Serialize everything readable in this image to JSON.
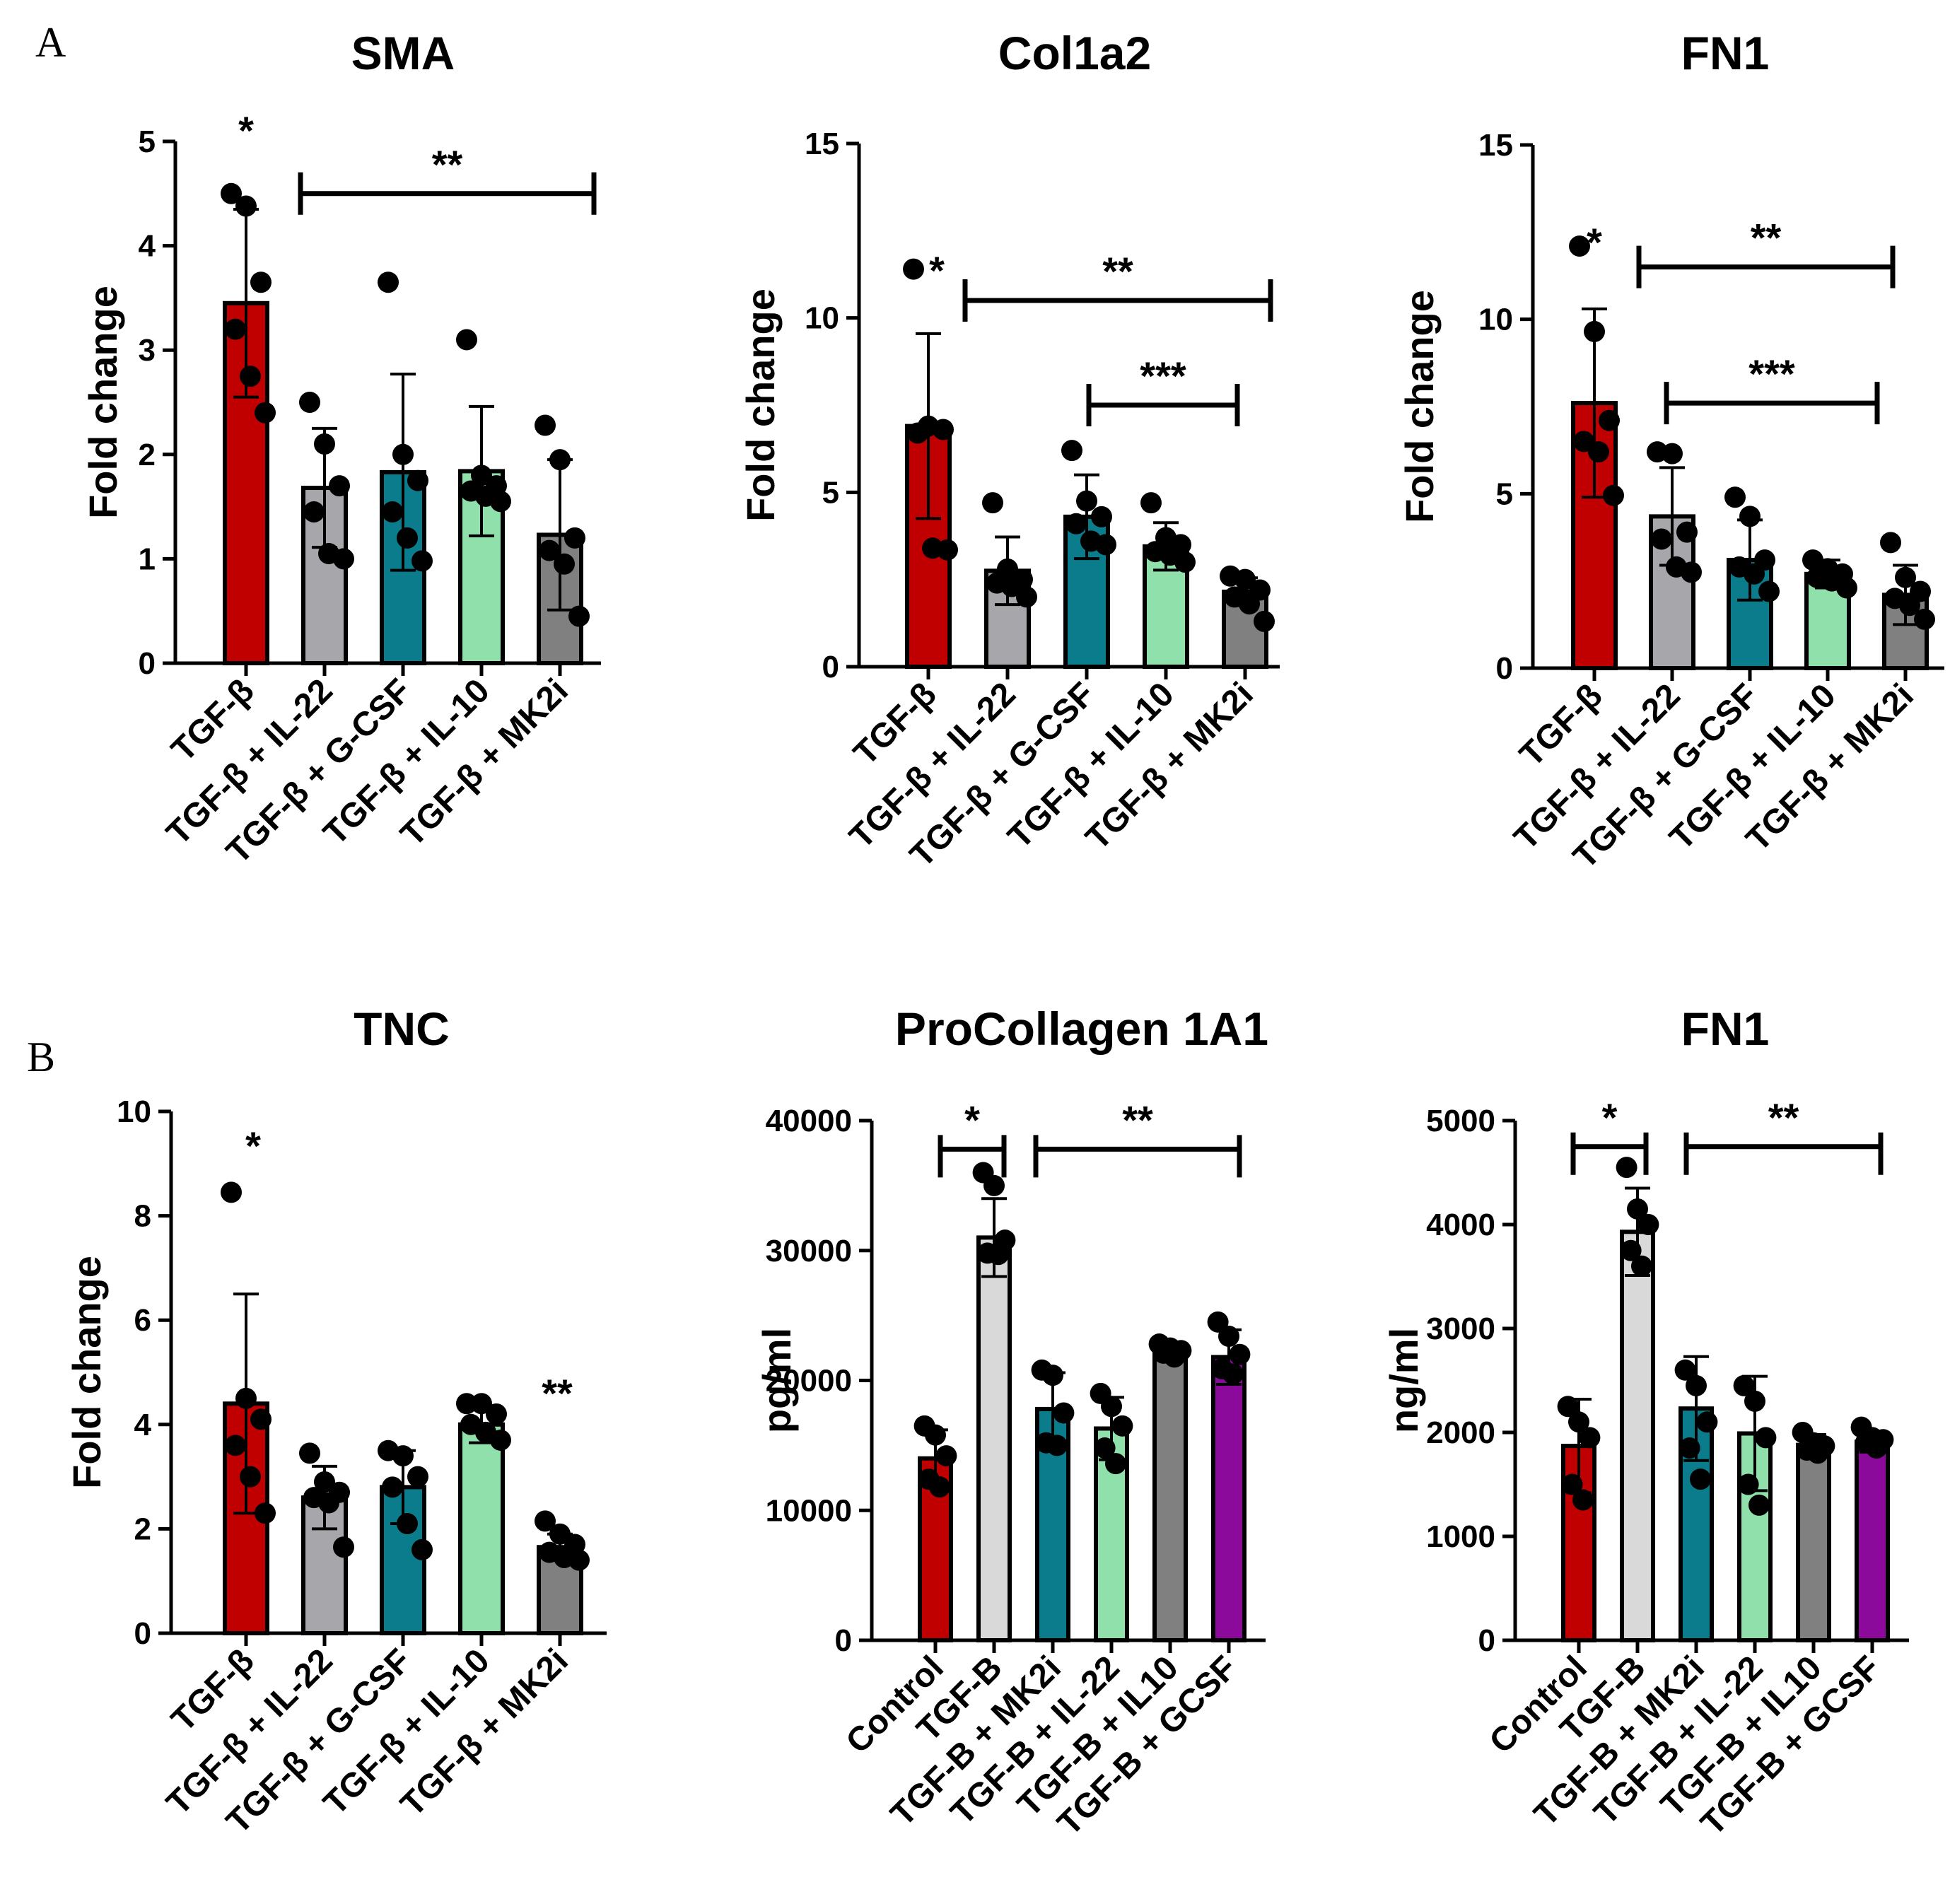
{
  "panel_labels": [
    "A",
    "B"
  ],
  "chart_data": [
    {
      "type": "bar",
      "panel": "A",
      "title": "SMA",
      "ylabel": "Fold change",
      "ylim": [
        0,
        5
      ],
      "yticks": [
        0,
        1,
        2,
        3,
        4,
        5
      ],
      "ytick_labels": [
        "0",
        "1",
        "2",
        "3",
        "4",
        "5"
      ],
      "categories": [
        "TGF-β",
        "TGF-β + IL-22",
        "TGF-β + G-CSF",
        "TGF-β + IL-10",
        "TGF-β + MK2i"
      ],
      "colors": [
        "#c00000",
        "#a6a6ab",
        "#0a7c8c",
        "#90e0ac",
        "#808080"
      ],
      "values": [
        3.45,
        1.68,
        1.83,
        1.84,
        1.23
      ],
      "errors": [
        0.9,
        0.57,
        0.94,
        0.62,
        0.72
      ],
      "points": [
        [
          4.5,
          4.38,
          3.65,
          3.2,
          2.75,
          2.4
        ],
        [
          2.5,
          2.1,
          1.7,
          1.45,
          1.05,
          1.0
        ],
        [
          3.65,
          2.0,
          1.75,
          1.45,
          1.2,
          0.98
        ],
        [
          3.1,
          1.8,
          1.7,
          1.65,
          1.6,
          1.55
        ],
        [
          2.28,
          1.95,
          1.2,
          1.08,
          0.95,
          0.45
        ]
      ],
      "star_labels": [
        "*"
      ],
      "bracket_labels": [
        "**"
      ]
    },
    {
      "type": "bar",
      "panel": "A",
      "title": "Col1a2",
      "ylabel": "Fold change",
      "ylim": [
        0,
        15
      ],
      "yticks": [
        0,
        5,
        10,
        15
      ],
      "ytick_labels": [
        "0",
        "5",
        "10",
        "15"
      ],
      "categories": [
        "TGF-β",
        "TGF-β + IL-22",
        "TGF-β + G-CSF",
        "TGF-β + IL-10",
        "TGF-β + MK2i"
      ],
      "colors": [
        "#c00000",
        "#a6a6ab",
        "#0a7c8c",
        "#90e0ac",
        "#808080"
      ],
      "values": [
        6.9,
        2.75,
        4.3,
        3.45,
        2.15
      ],
      "errors": [
        2.65,
        0.97,
        1.2,
        0.68,
        0.4
      ],
      "points": [
        [
          11.4,
          6.9,
          6.8,
          6.7,
          3.4,
          3.35
        ],
        [
          4.7,
          2.8,
          2.5,
          2.4,
          2.3,
          2.0
        ],
        [
          6.2,
          4.75,
          4.3,
          4.1,
          3.6,
          3.5
        ],
        [
          4.7,
          3.7,
          3.5,
          3.3,
          3.2,
          3.0
        ],
        [
          2.6,
          2.5,
          2.2,
          2.0,
          1.8,
          1.3
        ]
      ],
      "star_labels": [
        "*"
      ],
      "bracket_labels": [
        "**",
        "***"
      ]
    },
    {
      "type": "bar",
      "panel": "A",
      "title": "FN1",
      "ylabel": "Fold change",
      "ylim": [
        0,
        15
      ],
      "yticks": [
        0,
        5,
        10,
        15
      ],
      "ytick_labels": [
        "0",
        "5",
        "10",
        "15"
      ],
      "categories": [
        "TGF-β",
        "TGF-β + IL-22",
        "TGF-β + G-CSF",
        "TGF-β + IL-10",
        "TGF-β + MK2i"
      ],
      "colors": [
        "#c00000",
        "#a6a6ab",
        "#0a7c8c",
        "#90e0ac",
        "#808080"
      ],
      "values": [
        7.6,
        4.35,
        3.1,
        2.7,
        2.1
      ],
      "errors": [
        2.7,
        1.4,
        1.15,
        0.4,
        0.85
      ],
      "points": [
        [
          12.1,
          9.65,
          7.1,
          6.5,
          6.2,
          4.95
        ],
        [
          6.2,
          6.15,
          3.9,
          3.7,
          2.9,
          2.75
        ],
        [
          4.9,
          4.35,
          3.1,
          2.9,
          2.7,
          2.2
        ],
        [
          3.1,
          2.85,
          2.7,
          2.6,
          2.5,
          2.3
        ],
        [
          3.6,
          2.6,
          2.2,
          2.0,
          1.8,
          1.4
        ]
      ],
      "star_labels": [
        "*"
      ],
      "bracket_labels": [
        "**",
        "***"
      ]
    },
    {
      "type": "bar",
      "panel": "B",
      "title": "TNC",
      "ylabel": "Fold change",
      "ylim": [
        0,
        10
      ],
      "yticks": [
        0,
        2,
        4,
        6,
        8,
        10
      ],
      "ytick_labels": [
        "0",
        "2",
        "4",
        "6",
        "8",
        "10"
      ],
      "categories": [
        "TGF-β",
        "TGF-β + IL-22",
        "TGF-β + G-CSF",
        "TGF-β + IL-10",
        "TGF-β + MK2i"
      ],
      "colors": [
        "#c00000",
        "#a6a6ab",
        "#0a7c8c",
        "#90e0ac",
        "#808080"
      ],
      "values": [
        4.4,
        2.6,
        2.8,
        4.0,
        1.65
      ],
      "errors": [
        2.1,
        0.6,
        0.7,
        0.35,
        0.25
      ],
      "points": [
        [
          8.45,
          4.5,
          4.1,
          3.6,
          3.0,
          2.3
        ],
        [
          3.45,
          2.9,
          2.7,
          2.6,
          2.5,
          1.65
        ],
        [
          3.5,
          3.4,
          3.0,
          2.8,
          2.1,
          1.6
        ],
        [
          4.4,
          4.4,
          4.2,
          4.0,
          3.85,
          3.7
        ],
        [
          2.15,
          1.9,
          1.7,
          1.55,
          1.45,
          1.4
        ]
      ],
      "star_labels": [
        "*",
        "**"
      ],
      "bracket_labels": []
    },
    {
      "type": "bar",
      "panel": "B",
      "title": "ProCollagen 1A1",
      "ylabel": "pg/ml",
      "ylim": [
        0,
        40000
      ],
      "yticks": [
        0,
        10000,
        20000,
        30000,
        40000
      ],
      "ytick_labels": [
        "0",
        "10000",
        "20000",
        "30000",
        "40000"
      ],
      "categories": [
        "Control",
        "TGF-B",
        "TGF-B + MK2i",
        "TGF-B + IL-22",
        "TGF-B + IL10",
        "TGF-B + GCSF"
      ],
      "colors": [
        "#c00000",
        "#d9d9d9",
        "#0a7c8c",
        "#90e0ac",
        "#808080",
        "#8b0a9b"
      ],
      "values": [
        14000,
        31000,
        17800,
        16300,
        22300,
        21800
      ],
      "errors": [
        2200,
        3000,
        2800,
        2400,
        300,
        2100
      ],
      "points": [
        [
          16500,
          15800,
          14200,
          12400,
          11800
        ],
        [
          36000,
          35000,
          30800,
          29800,
          29700
        ],
        [
          20800,
          20400,
          17500,
          15200,
          15000
        ],
        [
          19000,
          18000,
          16500,
          14800,
          13600
        ],
        [
          22800,
          22500,
          22300,
          22100,
          21800
        ],
        [
          24500,
          23400,
          22000,
          20900,
          20500
        ]
      ],
      "star_labels": [],
      "bracket_labels": [
        "*",
        "**"
      ]
    },
    {
      "type": "bar",
      "panel": "B",
      "title": "FN1",
      "ylabel": "ng/ml",
      "ylim": [
        0,
        5000
      ],
      "yticks": [
        0,
        1000,
        2000,
        3000,
        4000,
        5000
      ],
      "ytick_labels": [
        "0",
        "1000",
        "2000",
        "3000",
        "4000",
        "5000"
      ],
      "categories": [
        "Control",
        "TGF-B",
        "TGF-B + MK2i",
        "TGF-B + IL-22",
        "TGF-B + IL10",
        "TGF-B + GCSF"
      ],
      "colors": [
        "#c00000",
        "#d9d9d9",
        "#0a7c8c",
        "#90e0ac",
        "#808080",
        "#8b0a9b"
      ],
      "values": [
        1870,
        3930,
        2230,
        1990,
        1880,
        1910
      ],
      "errors": [
        450,
        420,
        500,
        550,
        100,
        100
      ],
      "points": [
        [
          2250,
          2100,
          1950,
          1500,
          1350
        ],
        [
          4550,
          4150,
          4000,
          3750,
          3600
        ],
        [
          2600,
          2450,
          2100,
          1850,
          1550
        ],
        [
          2450,
          2300,
          1950,
          1500,
          1300
        ],
        [
          2000,
          1900,
          1870,
          1830,
          1800
        ],
        [
          2050,
          1950,
          1930,
          1900,
          1850
        ]
      ],
      "star_labels": [],
      "bracket_labels": [
        "*",
        "**"
      ]
    }
  ]
}
